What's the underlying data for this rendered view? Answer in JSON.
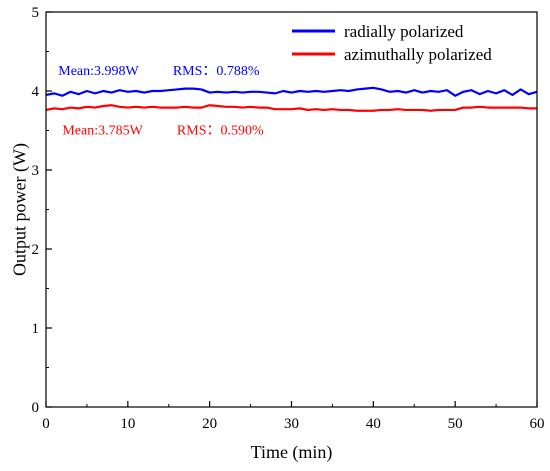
{
  "chart_data": {
    "type": "line",
    "xlabel": "Time (min)",
    "ylabel": "Output power (W)",
    "xlim": [
      0,
      60
    ],
    "ylim": [
      0,
      5
    ],
    "xticks": [
      0,
      10,
      20,
      30,
      40,
      50,
      60
    ],
    "yticks": [
      0,
      1,
      2,
      3,
      4,
      5
    ],
    "grid": false,
    "legend_position": "top-right",
    "series": [
      {
        "name": "radially polarized",
        "color": "#0000ff",
        "x": [
          0,
          1,
          2,
          3,
          4,
          5,
          6,
          7,
          8,
          9,
          10,
          11,
          12,
          13,
          14,
          15,
          16,
          17,
          18,
          19,
          20,
          21,
          22,
          23,
          24,
          25,
          26,
          27,
          28,
          29,
          30,
          31,
          32,
          33,
          34,
          35,
          36,
          37,
          38,
          39,
          40,
          41,
          42,
          43,
          44,
          45,
          46,
          47,
          48,
          49,
          50,
          51,
          52,
          53,
          54,
          55,
          56,
          57,
          58,
          59,
          60
        ],
        "values": [
          3.95,
          3.97,
          3.94,
          3.99,
          3.96,
          4.0,
          3.97,
          4.0,
          3.98,
          4.01,
          3.99,
          4.0,
          3.98,
          4.0,
          4.0,
          4.01,
          4.02,
          4.03,
          4.03,
          4.02,
          3.98,
          3.99,
          3.98,
          3.99,
          3.98,
          3.99,
          3.99,
          3.98,
          3.97,
          4.0,
          3.98,
          4.0,
          3.99,
          4.0,
          3.99,
          4.0,
          4.01,
          4.0,
          4.02,
          4.03,
          4.04,
          4.02,
          3.99,
          4.0,
          3.98,
          4.01,
          3.98,
          4.0,
          3.99,
          4.01,
          3.94,
          3.99,
          4.01,
          3.96,
          4.0,
          3.97,
          4.01,
          3.95,
          4.02,
          3.96,
          3.99
        ]
      },
      {
        "name": "azimuthally polarized",
        "color": "#ff0000",
        "x": [
          0,
          1,
          2,
          3,
          4,
          5,
          6,
          7,
          8,
          9,
          10,
          11,
          12,
          13,
          14,
          15,
          16,
          17,
          18,
          19,
          20,
          21,
          22,
          23,
          24,
          25,
          26,
          27,
          28,
          29,
          30,
          31,
          32,
          33,
          34,
          35,
          36,
          37,
          38,
          39,
          40,
          41,
          42,
          43,
          44,
          45,
          46,
          47,
          48,
          49,
          50,
          51,
          52,
          53,
          54,
          55,
          56,
          57,
          58,
          59,
          60
        ],
        "values": [
          3.76,
          3.78,
          3.77,
          3.79,
          3.78,
          3.8,
          3.79,
          3.81,
          3.82,
          3.8,
          3.79,
          3.8,
          3.79,
          3.8,
          3.79,
          3.79,
          3.79,
          3.8,
          3.79,
          3.79,
          3.82,
          3.81,
          3.8,
          3.8,
          3.79,
          3.8,
          3.79,
          3.79,
          3.77,
          3.77,
          3.77,
          3.78,
          3.76,
          3.77,
          3.76,
          3.77,
          3.76,
          3.76,
          3.75,
          3.75,
          3.75,
          3.76,
          3.76,
          3.77,
          3.76,
          3.76,
          3.76,
          3.75,
          3.76,
          3.76,
          3.76,
          3.79,
          3.79,
          3.8,
          3.79,
          3.79,
          3.79,
          3.79,
          3.79,
          3.78,
          3.78
        ]
      }
    ],
    "annotations": [
      {
        "text": "Mean:3.998W",
        "color": "#0000ff",
        "x": 1.5,
        "y": 4.2
      },
      {
        "text": "RMS：0.788%",
        "color": "#0000ff",
        "x": 15.5,
        "y": 4.2
      },
      {
        "text": "Mean:3.785W",
        "color": "#ff0000",
        "x": 2.0,
        "y": 3.45
      },
      {
        "text": "RMS：0.590%",
        "color": "#ff0000",
        "x": 16.0,
        "y": 3.45
      }
    ]
  }
}
